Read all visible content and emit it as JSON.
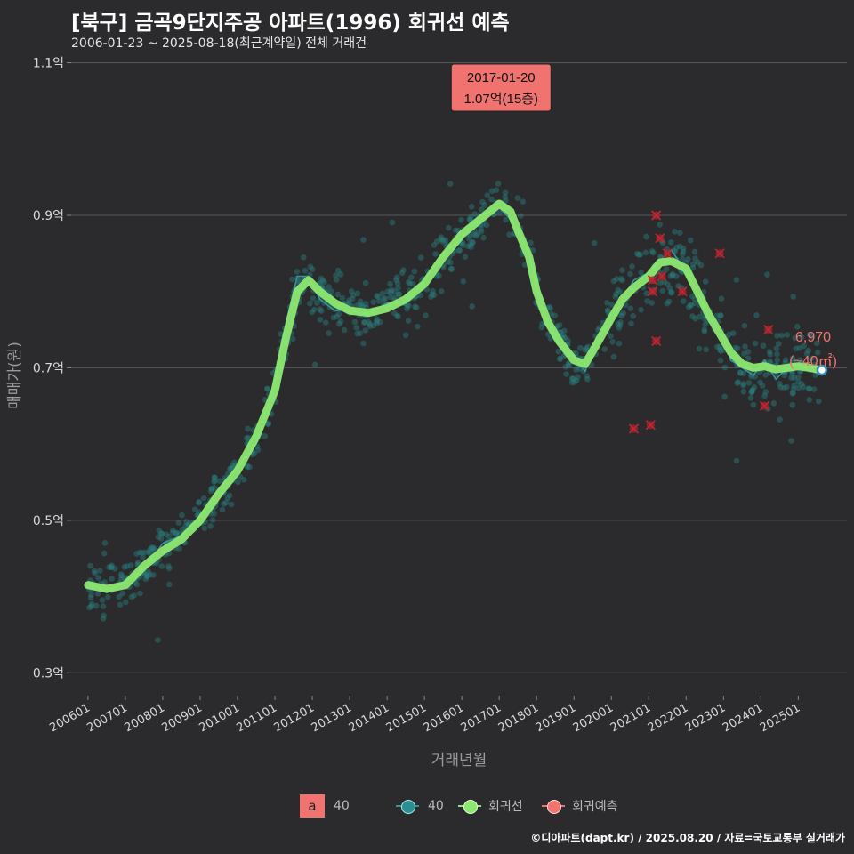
{
  "title": "[북구] 금곡9단지주공 아파트(1996) 회귀선 예측",
  "subtitle": "2006-01-23 ~ 2025-08-18(최근계약일) 전체 거래건",
  "credit": "©디아파트(dapt.kr) / 2025.08.20 / 자료=국토교통부 실거래가",
  "colors": {
    "background": "#2b2b2d",
    "grid": "#5a5a5c",
    "scatter": "#2a7f7f",
    "trend": "#37959a",
    "regression": "#8de870",
    "prediction": "#a8232f",
    "label_box": "#f0736f"
  },
  "legend": {
    "fill_key": "a",
    "fill_label": "40",
    "series_label": "40",
    "regression_label": "회귀선",
    "prediction_label": "회귀예측"
  },
  "max_label": {
    "date": "2017-01-20",
    "price": "1.07억(15층)",
    "x": 2017.05,
    "y": 1.07
  },
  "last_label": {
    "price": "6,970",
    "area": "(~40㎡)",
    "x": 2025.63,
    "y": 0.697
  },
  "chart_data": {
    "type": "scatter",
    "xlabel": "거래년월",
    "ylabel": "매매가(원)",
    "xlim": [
      2005.55,
      2026.3
    ],
    "ylim": [
      0.27,
      1.11
    ],
    "x_ticks": [
      2006,
      2007,
      2008,
      2009,
      2010,
      2011,
      2012,
      2013,
      2014,
      2015,
      2016,
      2017,
      2018,
      2019,
      2020,
      2021,
      2022,
      2023,
      2024,
      2025
    ],
    "x_tick_labels": [
      "200601",
      "200701",
      "200801",
      "200901",
      "201001",
      "201101",
      "201201",
      "201301",
      "201401",
      "201501",
      "201601",
      "201701",
      "201801",
      "201901",
      "202001",
      "202101",
      "202201",
      "202301",
      "202401",
      "202501"
    ],
    "y_ticks": [
      0.3,
      0.5,
      0.7,
      0.9,
      1.1
    ],
    "y_tick_labels": [
      "0.3억",
      "0.5억",
      "0.7억",
      "0.9억",
      "1.1억"
    ],
    "regression_series": {
      "name": "회귀선",
      "x": [
        2006.0,
        2006.5,
        2007.0,
        2007.5,
        2008.0,
        2008.5,
        2009.0,
        2009.5,
        2010.0,
        2010.5,
        2011.0,
        2011.3,
        2011.6,
        2011.9,
        2012.2,
        2012.6,
        2013.0,
        2013.5,
        2014.0,
        2014.5,
        2015.0,
        2015.5,
        2016.0,
        2016.5,
        2017.0,
        2017.3,
        2017.5,
        2017.8,
        2018.0,
        2018.3,
        2018.6,
        2019.0,
        2019.3,
        2019.6,
        2020.0,
        2020.3,
        2020.6,
        2021.0,
        2021.3,
        2021.6,
        2022.0,
        2022.3,
        2022.6,
        2022.9,
        2023.2,
        2023.5,
        2023.8,
        2024.1,
        2024.4,
        2024.7,
        2025.0,
        2025.3,
        2025.6
      ],
      "y": [
        0.415,
        0.41,
        0.415,
        0.44,
        0.46,
        0.475,
        0.5,
        0.535,
        0.565,
        0.61,
        0.67,
        0.74,
        0.8,
        0.815,
        0.8,
        0.785,
        0.775,
        0.772,
        0.778,
        0.79,
        0.81,
        0.845,
        0.875,
        0.895,
        0.915,
        0.905,
        0.88,
        0.845,
        0.8,
        0.76,
        0.735,
        0.71,
        0.705,
        0.73,
        0.765,
        0.79,
        0.805,
        0.82,
        0.838,
        0.84,
        0.83,
        0.8,
        0.77,
        0.745,
        0.72,
        0.705,
        0.7,
        0.702,
        0.698,
        0.7,
        0.702,
        0.7,
        0.697
      ]
    },
    "trend_series": {
      "name": "40",
      "x": [
        2006.0,
        2006.5,
        2007.0,
        2007.5,
        2008.0,
        2008.5,
        2009.0,
        2009.5,
        2010.0,
        2010.5,
        2011.0,
        2011.3,
        2011.6,
        2011.9,
        2012.2,
        2012.6,
        2013.0,
        2013.5,
        2014.0,
        2014.5,
        2015.0,
        2015.5,
        2016.0,
        2016.5,
        2017.0,
        2017.3,
        2017.5,
        2017.8,
        2018.0,
        2018.3,
        2018.6,
        2019.0,
        2019.3,
        2019.6,
        2020.0,
        2020.3,
        2020.6,
        2021.0,
        2021.3,
        2021.6,
        2022.0,
        2022.3,
        2022.6,
        2022.9,
        2023.2,
        2023.5,
        2023.8,
        2024.1,
        2024.4,
        2024.7,
        2025.0,
        2025.3,
        2025.6
      ],
      "y": [
        0.42,
        0.405,
        0.42,
        0.435,
        0.47,
        0.48,
        0.505,
        0.54,
        0.57,
        0.6,
        0.68,
        0.76,
        0.82,
        0.82,
        0.79,
        0.775,
        0.775,
        0.77,
        0.785,
        0.785,
        0.815,
        0.85,
        0.87,
        0.9,
        0.91,
        0.895,
        0.88,
        0.85,
        0.805,
        0.755,
        0.73,
        0.715,
        0.695,
        0.74,
        0.76,
        0.79,
        0.815,
        0.825,
        0.84,
        0.855,
        0.825,
        0.8,
        0.765,
        0.75,
        0.71,
        0.7,
        0.69,
        0.71,
        0.685,
        0.7,
        0.705,
        0.695,
        0.697
      ]
    },
    "prediction_points": {
      "name": "회귀예측",
      "x": [
        2020.6,
        2021.05,
        2021.2,
        2021.3,
        2021.1,
        2021.35,
        2021.1,
        2021.2,
        2021.5,
        2021.9,
        2022.9,
        2024.1,
        2024.2
      ],
      "y": [
        0.62,
        0.625,
        0.9,
        0.87,
        0.815,
        0.82,
        0.8,
        0.735,
        0.85,
        0.8,
        0.85,
        0.65,
        0.75
      ]
    },
    "scatter_note": "전체 거래건 (약 1,000건, 회귀선 주변 분포)"
  }
}
